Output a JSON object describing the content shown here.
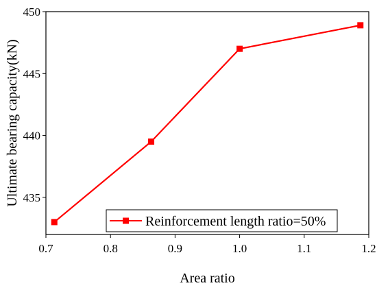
{
  "chart_data": {
    "type": "line",
    "xlabel": "Area ratio",
    "ylabel": "Ultimate bearing capacity(kN)",
    "xlim": [
      0.7,
      1.2
    ],
    "ylim": [
      432.0,
      450.0
    ],
    "xticks": [
      "0.7",
      "0.8",
      "0.9",
      "1.0",
      "1.1",
      "1.2"
    ],
    "yticks": [
      "435",
      "440",
      "445",
      "450"
    ],
    "grid": false,
    "legend_position": "bottom-right",
    "series": [
      {
        "name": "Reinforcement length ratio=50%",
        "color": "#ff0000",
        "marker": "square",
        "x": [
          0.713,
          0.863,
          1.0,
          1.187
        ],
        "y": [
          433.0,
          439.5,
          447.0,
          448.9
        ]
      }
    ]
  }
}
